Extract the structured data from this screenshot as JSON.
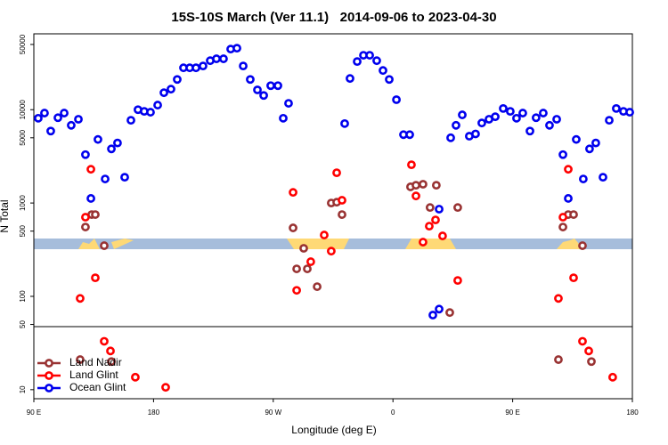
{
  "chart_data": {
    "type": "scatter",
    "title": "15S-10S March (Ver 11.1)   2014-09-06 to 2023-04-30",
    "x_label": "Longitude (deg E)",
    "y_label": "N Total",
    "ylog": true,
    "legend": "lower left",
    "xlim": [
      90,
      540
    ],
    "xticks": [
      {
        "value": 90,
        "label": "90 E"
      },
      180,
      {
        "value": 270,
        "label": "90 W"
      },
      {
        "value": 360,
        "label": "0"
      },
      {
        "value": 450,
        "label": "90 E"
      },
      {
        "value": 540,
        "label": "180"
      }
    ],
    "ylim": [
      8,
      65000
    ],
    "yticks": [
      50000,
      10000,
      5000,
      1000,
      500,
      100,
      50,
      10
    ],
    "series": [
      {
        "name": "Land Nadir",
        "color": "#993333",
        "x": [
          124.8,
          128.8,
          133.5,
          136.2,
          142.9,
          148.3,
          284.9,
          287.6,
          292.9,
          295.6,
          303.0,
          313.6,
          317.7,
          321.7,
          373.2,
          377.3,
          382.6,
          387.9,
          392.6,
          402.7,
          408.7,
          484.4,
          487.8,
          491.8,
          495.8,
          502.5,
          509.2
        ],
        "values": [
          21,
          553,
          752,
          752,
          349,
          20,
          541,
          197,
          327,
          197,
          127,
          1000,
          1020,
          752,
          1490,
          1550,
          1590,
          895,
          1550,
          67,
          895,
          21,
          553,
          752,
          752,
          349,
          20
        ]
      },
      {
        "name": "Land Glint",
        "color": "#ff0000",
        "x": [
          124.8,
          128.8,
          132.9,
          136.2,
          142.9,
          147.6,
          166.3,
          189.1,
          284.9,
          287.6,
          298.2,
          308.3,
          313.6,
          317.7,
          321.7,
          373.9,
          377.3,
          382.6,
          387.3,
          392.0,
          397.3,
          408.7,
          484.4,
          487.8,
          491.8,
          495.8,
          502.5,
          507.2,
          525.2
        ],
        "values": [
          95,
          705,
          2300,
          158,
          33,
          26,
          13.6,
          10.6,
          1300,
          116,
          235,
          454,
          305,
          2110,
          1070,
          2570,
          1190,
          381,
          565,
          659,
          444,
          148,
          95,
          705,
          2300,
          158,
          33,
          26,
          13.6
        ]
      },
      {
        "name": "Ocean Glint",
        "color": "#0000ee",
        "x": [
          93.3,
          98.0,
          102.7,
          108.1,
          112.8,
          118.1,
          123.5,
          128.8,
          132.9,
          138.2,
          143.6,
          148.3,
          152.9,
          158.3,
          163.0,
          168.3,
          173.0,
          177.7,
          183.1,
          187.8,
          193.1,
          197.8,
          202.5,
          207.2,
          211.9,
          217.2,
          222.6,
          227.3,
          232.6,
          238.0,
          242.7,
          247.4,
          252.7,
          258.1,
          262.8,
          268.1,
          273.5,
          277.5,
          281.5,
          323.7,
          327.7,
          333.1,
          337.8,
          342.5,
          347.8,
          352.5,
          357.2,
          362.6,
          367.9,
          372.6,
          390.0,
          394.7,
          394.7,
          403.4,
          407.4,
          412.1,
          417.4,
          422.1,
          426.8,
          432.2,
          436.9,
          442.9,
          448.2,
          452.9,
          457.6,
          463.0,
          467.6,
          473.0,
          477.7,
          483.1,
          487.8,
          491.8,
          497.8,
          503.1,
          507.8,
          512.5,
          517.9,
          522.6,
          527.9,
          533.3,
          538.0
        ],
        "values": [
          8100,
          9200,
          5900,
          8200,
          9200,
          6800,
          7900,
          3300,
          1120,
          4800,
          1810,
          3800,
          4400,
          1890,
          7700,
          10000,
          9600,
          9400,
          11200,
          15200,
          16600,
          21100,
          28100,
          28100,
          28100,
          29400,
          33500,
          35100,
          35100,
          44600,
          45600,
          29400,
          21100,
          16300,
          14200,
          18100,
          18100,
          8100,
          11700,
          7100,
          21600,
          32800,
          38300,
          38300,
          33500,
          26300,
          21100,
          12800,
          5400,
          5400,
          63,
          73,
          860,
          5000,
          6800,
          8800,
          5200,
          5500,
          7200,
          7900,
          8400,
          10300,
          9600,
          8100,
          9200,
          5900,
          8200,
          9200,
          6800,
          7900,
          3300,
          1120,
          4800,
          1810,
          3800,
          4400,
          1890,
          7700,
          10300,
          9600,
          9400
        ]
      }
    ]
  }
}
